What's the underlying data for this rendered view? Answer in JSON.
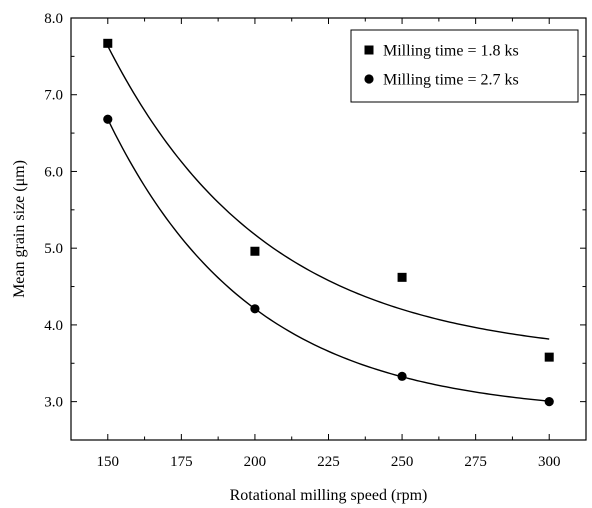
{
  "chart_data": {
    "type": "scatter",
    "xlabel": "Rotational milling speed (rpm)",
    "ylabel": "Mean grain size (μm)",
    "xlim": [
      137.5,
      312.5
    ],
    "ylim": [
      2.5,
      8.0
    ],
    "x_ticks": [
      150,
      175,
      200,
      225,
      250,
      275,
      300
    ],
    "y_ticks": [
      3.0,
      4.0,
      5.0,
      6.0,
      7.0,
      8.0
    ],
    "y_tick_labels": [
      "3.0",
      "4.0",
      "5.0",
      "6.0",
      "7.0",
      "8.0"
    ],
    "grid": false,
    "legend_position": "top-right",
    "series": [
      {
        "name": "Milling time = 1.8 ks",
        "marker": "square",
        "color": "#000000",
        "x": [
          150,
          200,
          250,
          300
        ],
        "y": [
          7.67,
          4.96,
          4.62,
          3.58
        ],
        "fit_curve": true
      },
      {
        "name": "Milling time = 2.7 ks",
        "marker": "circle",
        "color": "#000000",
        "x": [
          150,
          200,
          250,
          300
        ],
        "y": [
          6.68,
          4.21,
          3.33,
          3.0
        ],
        "fit_curve": true
      }
    ]
  }
}
